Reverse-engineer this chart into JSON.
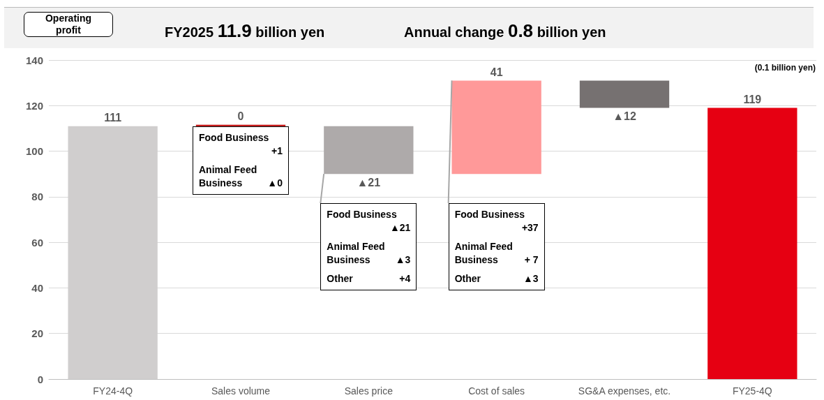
{
  "chart_data": {
    "type": "bar",
    "title": "Operating profit",
    "subtitle": "FY2025 11.9 billion yen",
    "ylabel": "(0.1 billion yen)",
    "annotations": [
      "Annual change 0.8 billion yen",
      "Food Business\n+1\nAnimal Feed\nBusiness ▲0",
      "Food Business\n▲21\nAnimal Feed\nBusiness ▲3\nOther +4",
      "Food Business\n+37\nAnimal Feed\nBusiness + 7\nOther ▲3"
    ],
    "categories": [
      "FY24-4Q",
      "Sales volume",
      "Sales price",
      "Cost of sales",
      "SG&A expenses, etc.",
      "FY25-4Q"
    ],
    "values": [
      111,
      0,
      -21,
      41,
      -12,
      119
    ],
    "base": [
      0,
      111,
      111,
      90,
      131,
      0
    ],
    "colors": [
      "#d0cece",
      "#c00000",
      "#aeaaaa",
      "#ff9999",
      "#767171",
      "#e60012"
    ],
    "value_labels": [
      "111",
      "0",
      "▲21",
      "41",
      "▲12",
      "119"
    ],
    "ylim": [
      0,
      140
    ],
    "yticks": [
      0,
      20,
      40,
      60,
      80,
      100,
      120,
      140
    ],
    "grid": "y"
  }
}
